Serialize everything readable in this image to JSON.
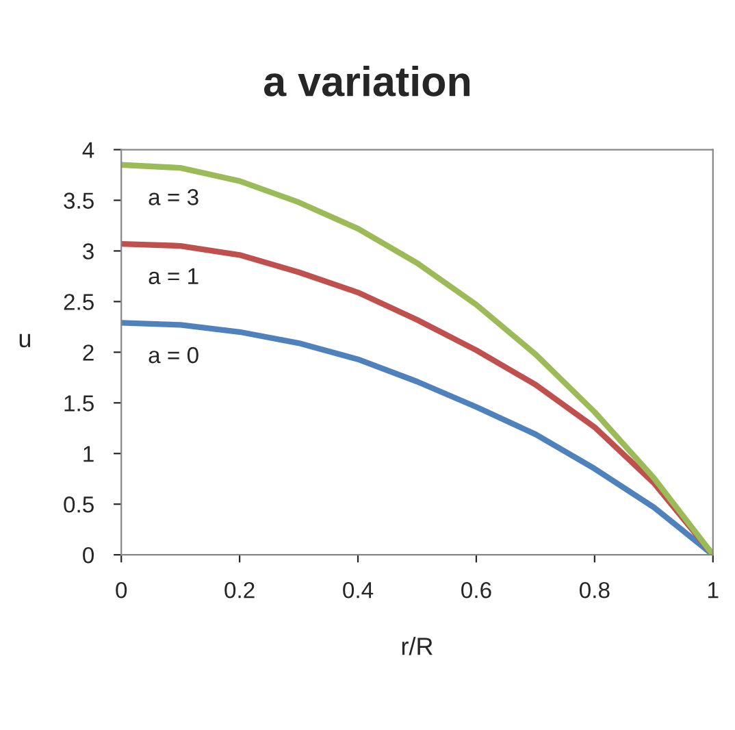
{
  "chart_data": {
    "type": "line",
    "title": "a variation",
    "xlabel": "r/R",
    "ylabel": "u",
    "x": [
      0,
      0.1,
      0.2,
      0.3,
      0.4,
      0.5,
      0.6,
      0.7,
      0.8,
      0.9,
      1
    ],
    "series": [
      {
        "name": "a = 0",
        "color": "#4f81bd",
        "values": [
          2.29,
          2.27,
          2.2,
          2.09,
          1.93,
          1.71,
          1.46,
          1.19,
          0.85,
          0.47,
          0
        ]
      },
      {
        "name": "a = 1",
        "color": "#c0504d",
        "values": [
          3.07,
          3.05,
          2.96,
          2.79,
          2.59,
          2.32,
          2.02,
          1.68,
          1.26,
          0.71,
          0
        ]
      },
      {
        "name": "a = 3",
        "color": "#9bbb59",
        "values": [
          3.85,
          3.82,
          3.69,
          3.48,
          3.22,
          2.88,
          2.47,
          1.98,
          1.41,
          0.76,
          0
        ]
      }
    ],
    "xlim": [
      0,
      1
    ],
    "xticks": [
      0,
      0.2,
      0.4,
      0.6,
      0.8,
      1
    ],
    "ylim": [
      0,
      4
    ],
    "yticks": [
      0,
      0.5,
      1,
      1.5,
      2,
      2.5,
      3,
      3.5,
      4
    ],
    "grid": false,
    "legend": false,
    "marker": "none",
    "line_style": "solid"
  }
}
